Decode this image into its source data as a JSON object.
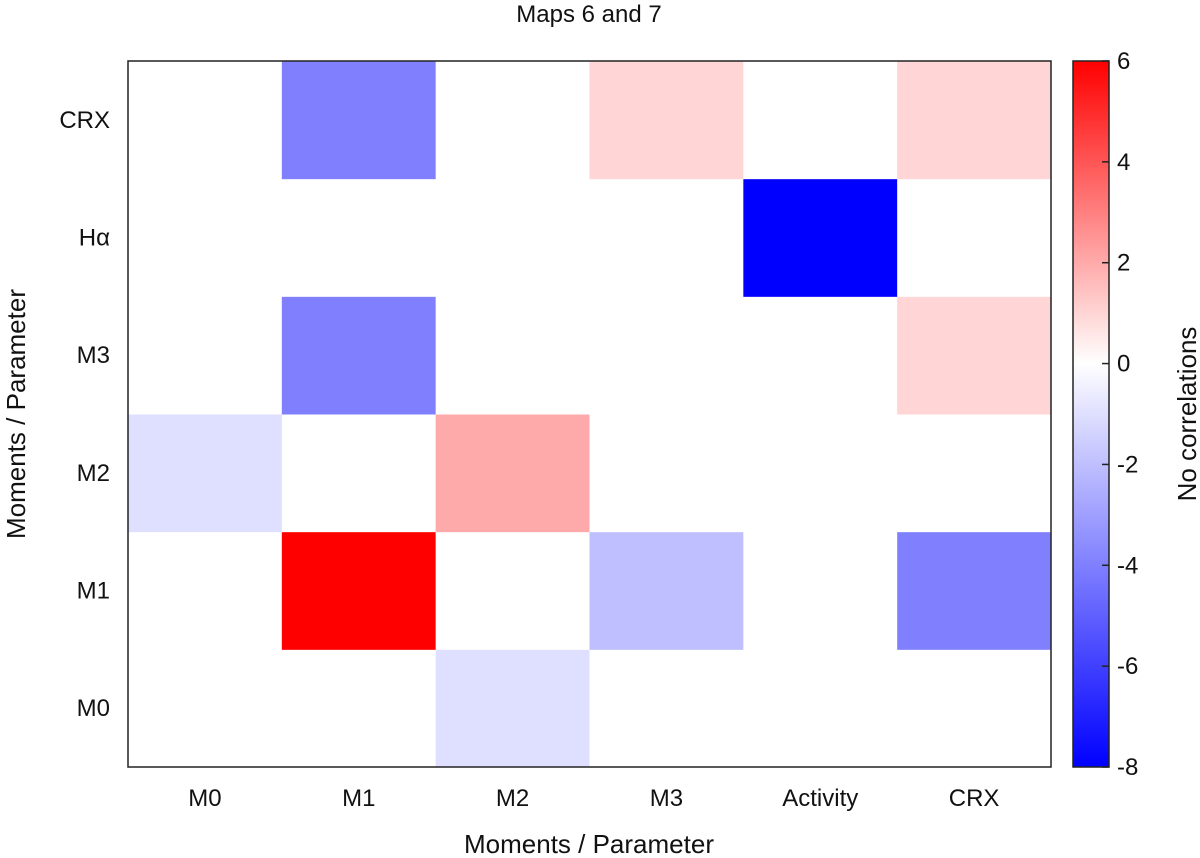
{
  "chart_data": {
    "type": "heatmap",
    "title": "Maps 6 and 7",
    "xlabel": "Moments / Parameter",
    "ylabel": "Moments / Parameter",
    "x_categories": [
      "M0",
      "M1",
      "M2",
      "M3",
      "Activity",
      "CRX"
    ],
    "y_categories": [
      "M0",
      "M1",
      "M2",
      "M3",
      "Hα",
      "CRX"
    ],
    "values": [
      [
        0,
        0,
        -1,
        0,
        0,
        0
      ],
      [
        0,
        6,
        0,
        -2,
        0,
        -4
      ],
      [
        -1,
        0,
        2,
        0,
        0,
        0
      ],
      [
        0,
        -4,
        0,
        0,
        0,
        1
      ],
      [
        0,
        0,
        0,
        0,
        -8,
        0
      ],
      [
        0,
        -4,
        0,
        1,
        0,
        1
      ]
    ],
    "colorbar": {
      "label": "No correlations",
      "range": [
        -8,
        6
      ],
      "ticks": [
        6,
        4,
        2,
        0,
        -2,
        -4,
        -6,
        -8
      ],
      "colors": {
        "min": "#0000ff",
        "mid": "#ffffff",
        "max": "#ff0000"
      }
    },
    "grid": false
  }
}
